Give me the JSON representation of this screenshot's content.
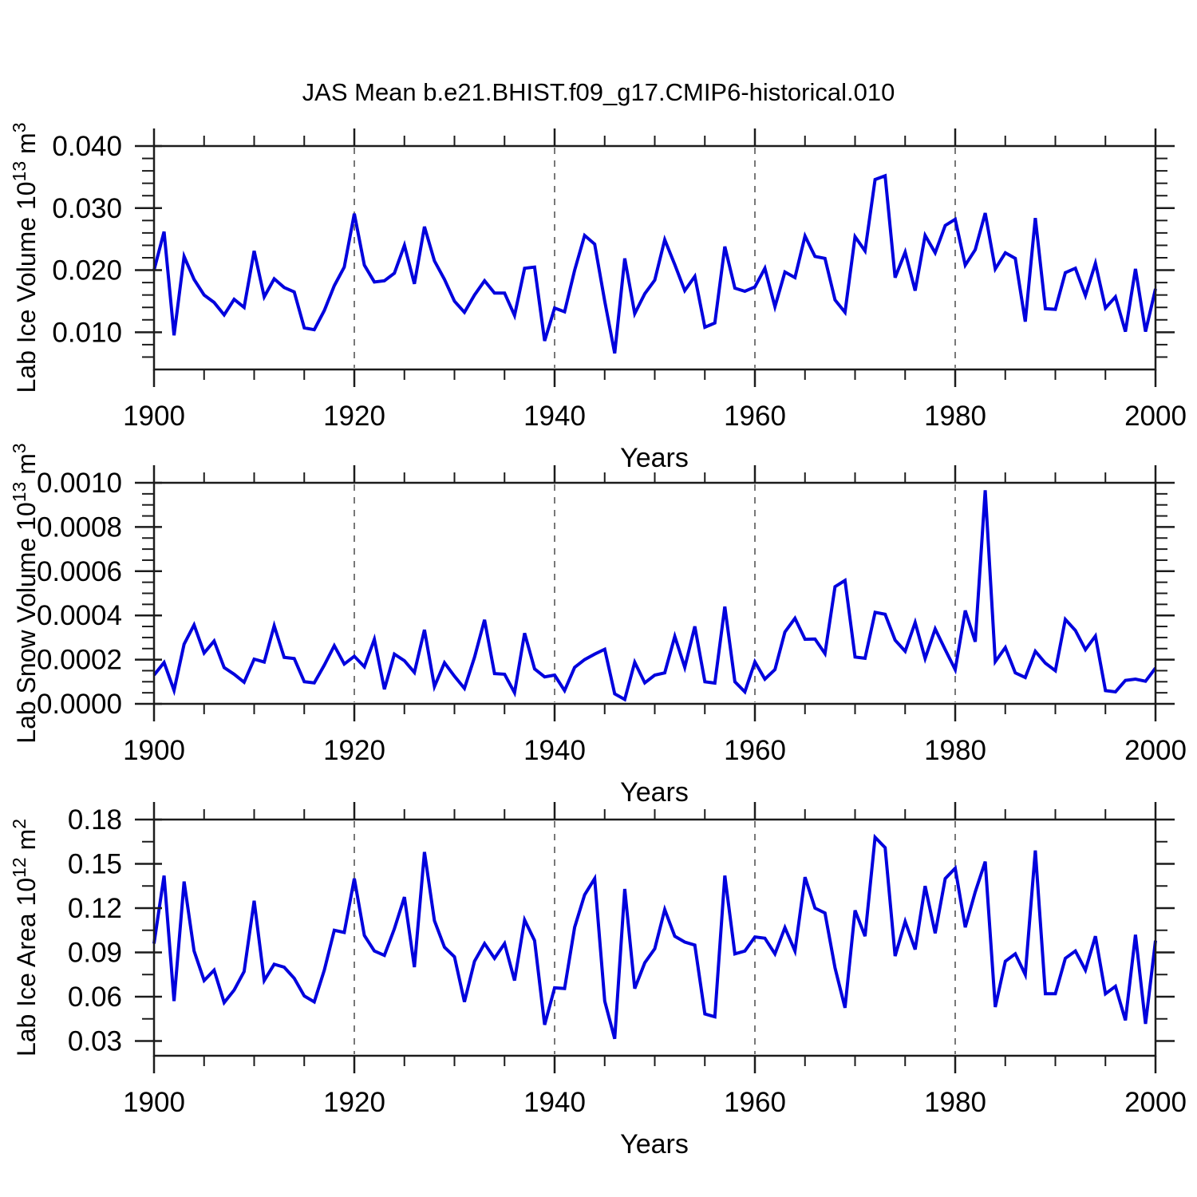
{
  "title": "JAS Mean b.e21.BHIST.f09_g17.CMIP6-historical.010",
  "styles": {
    "accent": "#0000dd",
    "grid": "#787878",
    "axis": "#1c1c1c"
  },
  "chart_data": [
    {
      "type": "line",
      "name": "lab-ice-volume",
      "xlabel": "Years",
      "ylabel": {
        "base": "Lab Ice Volume 10",
        "exp": "13",
        "unit": " m",
        "unit_exp": "3"
      },
      "x_start": 1900,
      "x_step": 1,
      "xlim": [
        1900,
        2000
      ],
      "ylim": [
        0.004,
        0.04
      ],
      "xticks": {
        "major": [
          1900,
          1920,
          1940,
          1960,
          1980,
          2000
        ],
        "minor_step": 5
      },
      "yticks": {
        "major": [
          0.01,
          0.02,
          0.03,
          0.04
        ],
        "labels": [
          "0.010",
          "0.020",
          "0.030",
          "0.040"
        ],
        "minor_step": 0.002
      },
      "gridlines_x": [
        1920,
        1940,
        1960,
        1980
      ],
      "legend": "none",
      "line_color": "#0000dd",
      "values": [
        0.02,
        0.0262,
        0.0095,
        0.0222,
        0.0185,
        0.016,
        0.0148,
        0.0128,
        0.0153,
        0.014,
        0.0231,
        0.0157,
        0.0186,
        0.0172,
        0.0165,
        0.0107,
        0.0104,
        0.0135,
        0.0175,
        0.0205,
        0.0291,
        0.0208,
        0.0181,
        0.0183,
        0.0195,
        0.024,
        0.0178,
        0.027,
        0.0215,
        0.0185,
        0.015,
        0.0132,
        0.016,
        0.0183,
        0.0163,
        0.0163,
        0.0127,
        0.0203,
        0.0205,
        0.0086,
        0.0139,
        0.0133,
        0.02,
        0.0256,
        0.0242,
        0.015,
        0.0066,
        0.0219,
        0.013,
        0.0162,
        0.0184,
        0.0249,
        0.0209,
        0.0167,
        0.019,
        0.0108,
        0.0115,
        0.0238,
        0.0171,
        0.0166,
        0.0173,
        0.0203,
        0.0141,
        0.0197,
        0.0188,
        0.0255,
        0.0222,
        0.0219,
        0.0152,
        0.0132,
        0.0254,
        0.0231,
        0.0346,
        0.0352,
        0.0188,
        0.0229,
        0.0167,
        0.0256,
        0.0228,
        0.0272,
        0.0282,
        0.0208,
        0.0233,
        0.0292,
        0.0202,
        0.0228,
        0.0219,
        0.0117,
        0.0284,
        0.0138,
        0.0137,
        0.0196,
        0.0203,
        0.0159,
        0.0211,
        0.0139,
        0.0157,
        0.0101,
        0.0202,
        0.0101,
        0.017
      ]
    },
    {
      "type": "line",
      "name": "lab-snow-volume",
      "xlabel": "Years",
      "ylabel": {
        "base": "Lab Snow Volume 10",
        "exp": "13",
        "unit": " m",
        "unit_exp": "3"
      },
      "x_start": 1900,
      "x_step": 1,
      "xlim": [
        1900,
        2000
      ],
      "ylim": [
        0.0,
        0.001
      ],
      "xticks": {
        "major": [
          1900,
          1920,
          1940,
          1960,
          1980,
          2000
        ],
        "minor_step": 5
      },
      "yticks": {
        "major": [
          0.0,
          0.0002,
          0.0004,
          0.0006,
          0.0008,
          0.001
        ],
        "labels": [
          "0.0000",
          "0.0002",
          "0.0004",
          "0.0006",
          "0.0008",
          "0.0010"
        ],
        "minor_step": 5e-05
      },
      "gridlines_x": [
        1920,
        1940,
        1960,
        1980
      ],
      "legend": "none",
      "line_color": "#0000dd",
      "values": [
        0.00013,
        0.000187,
        6.1e-05,
        0.00027,
        0.000357,
        0.00023,
        0.000284,
        0.000164,
        0.000134,
        9.8e-05,
        0.000202,
        0.000189,
        0.000353,
        0.00021,
        0.000205,
        0.0001,
        9.5e-05,
        0.000175,
        0.000263,
        0.00018,
        0.000215,
        0.000168,
        0.000292,
        6.6e-05,
        0.000225,
        0.000195,
        0.000142,
        0.000335,
        7.8e-05,
        0.000186,
        0.000125,
        7e-05,
        0.00021,
        0.00038,
        0.000137,
        0.000134,
        5e-05,
        0.00032,
        0.000158,
        0.000122,
        0.00013,
        6e-05,
        0.000165,
        0.0002,
        0.000225,
        0.000247,
        4.5e-05,
        2e-05,
        0.000188,
        9.5e-05,
        0.00013,
        0.00014,
        0.000305,
        0.000165,
        0.00035,
        0.0001,
        9.4e-05,
        0.00044,
        0.0001,
        5.4e-05,
        0.00019,
        0.000112,
        0.000155,
        0.000325,
        0.000387,
        0.000292,
        0.000293,
        0.000227,
        0.00053,
        0.000558,
        0.000212,
        0.000206,
        0.000414,
        0.000405,
        0.000288,
        0.000238,
        0.000368,
        0.000205,
        0.000339,
        0.000245,
        0.000155,
        0.000422,
        0.000281,
        0.000966,
        0.000191,
        0.000255,
        0.00014,
        0.000119,
        0.000238,
        0.000184,
        0.00015,
        0.000382,
        0.000332,
        0.000245,
        0.000307,
        6e-05,
        5.4e-05,
        0.000106,
        0.000112,
        0.000102,
        0.000162
      ]
    },
    {
      "type": "line",
      "name": "lab-ice-area",
      "xlabel": "Years",
      "ylabel": {
        "base": "Lab Ice Area 10",
        "exp": "12",
        "unit": " m",
        "unit_exp": "2"
      },
      "x_start": 1900,
      "x_step": 1,
      "xlim": [
        1900,
        2000
      ],
      "ylim": [
        0.02,
        0.18
      ],
      "xticks": {
        "major": [
          1900,
          1920,
          1940,
          1960,
          1980,
          2000
        ],
        "minor_step": 5
      },
      "yticks": {
        "major": [
          0.03,
          0.06,
          0.09,
          0.12,
          0.15,
          0.18
        ],
        "labels": [
          "0.03",
          "0.06",
          "0.09",
          "0.12",
          "0.15",
          "0.18"
        ],
        "minor_step": 0.015
      },
      "gridlines_x": [
        1920,
        1940,
        1960,
        1980
      ],
      "legend": "none",
      "line_color": "#0000dd",
      "values": [
        0.096,
        0.142,
        0.057,
        0.138,
        0.091,
        0.071,
        0.078,
        0.056,
        0.0645,
        0.077,
        0.125,
        0.071,
        0.082,
        0.08,
        0.0725,
        0.0605,
        0.0565,
        0.078,
        0.105,
        0.1035,
        0.14,
        0.1015,
        0.091,
        0.088,
        0.106,
        0.1275,
        0.08,
        0.158,
        0.1115,
        0.0935,
        0.087,
        0.0565,
        0.084,
        0.096,
        0.086,
        0.096,
        0.071,
        0.112,
        0.098,
        0.041,
        0.066,
        0.0655,
        0.107,
        0.129,
        0.14,
        0.057,
        0.0315,
        0.133,
        0.0655,
        0.083,
        0.0925,
        0.119,
        0.101,
        0.097,
        0.095,
        0.0483,
        0.0464,
        0.142,
        0.089,
        0.0909,
        0.1005,
        0.0996,
        0.089,
        0.1068,
        0.091,
        0.141,
        0.12,
        0.1167,
        0.0795,
        0.0525,
        0.1185,
        0.101,
        0.168,
        0.161,
        0.0875,
        0.111,
        0.092,
        0.135,
        0.103,
        0.14,
        0.147,
        0.107,
        0.131,
        0.1515,
        0.053,
        0.084,
        0.089,
        0.075,
        0.159,
        0.062,
        0.062,
        0.086,
        0.091,
        0.078,
        0.101,
        0.062,
        0.067,
        0.044,
        0.102,
        0.0416,
        0.098
      ]
    }
  ]
}
